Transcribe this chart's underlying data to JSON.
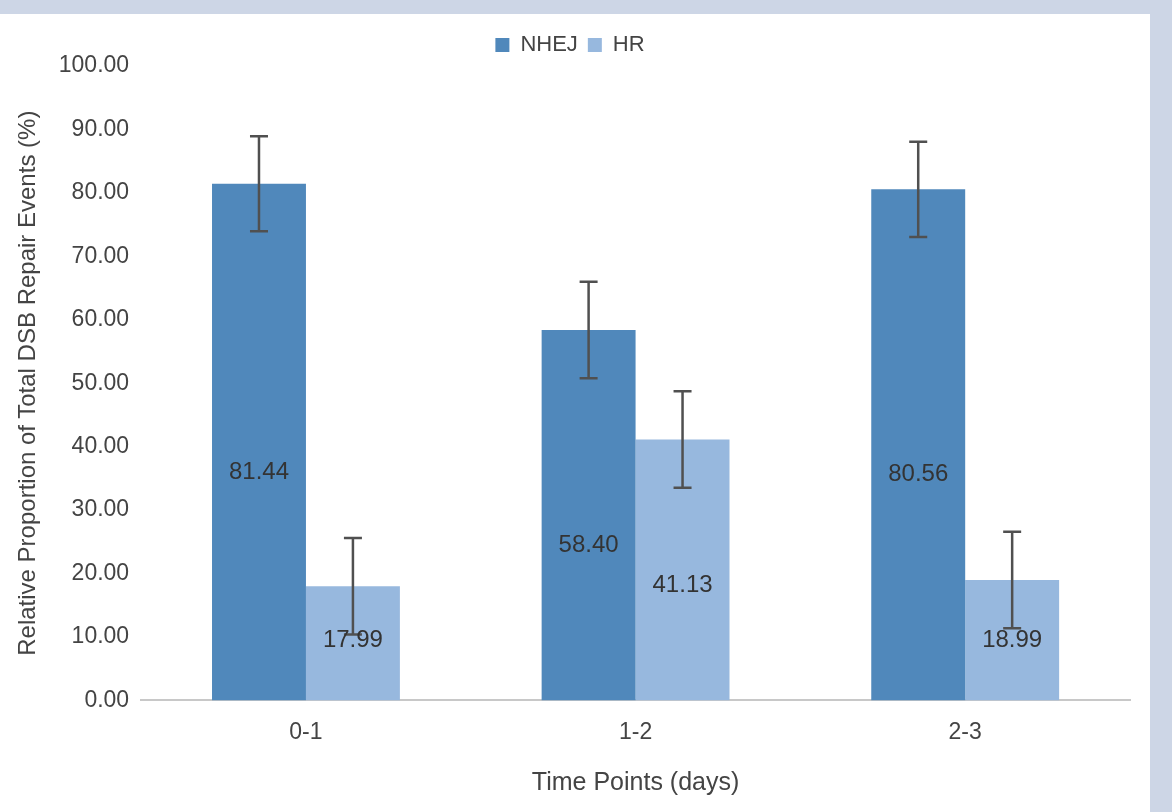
{
  "chart_data": {
    "type": "bar",
    "xlabel": "Time Points (days)",
    "ylabel": "Relative Proportion of Total DSB Repair Events (%)",
    "categories": [
      "0-1",
      "1-2",
      "2-3"
    ],
    "series": [
      {
        "name": "NHEJ",
        "color": "#5088bb",
        "values": [
          81.44,
          58.4,
          80.56
        ],
        "value_labels": [
          "81.44",
          "58.40",
          "80.56"
        ],
        "errors": [
          7.5,
          7.6,
          7.5
        ]
      },
      {
        "name": "HR",
        "color": "#97b8de",
        "values": [
          17.99,
          41.13,
          18.99
        ],
        "value_labels": [
          "17.99",
          "41.13",
          "18.99"
        ],
        "errors": [
          7.6,
          7.6,
          7.6
        ]
      }
    ],
    "ylim": [
      0,
      100
    ],
    "yticks": [
      {
        "value": 0,
        "label": "0.00"
      },
      {
        "value": 10,
        "label": "10.00"
      },
      {
        "value": 20,
        "label": "20.00"
      },
      {
        "value": 30,
        "label": "30.00"
      },
      {
        "value": 40,
        "label": "40.00"
      },
      {
        "value": 50,
        "label": "50.00"
      },
      {
        "value": 60,
        "label": "60.00"
      },
      {
        "value": 70,
        "label": "70.00"
      },
      {
        "value": 80,
        "label": "80.00"
      },
      {
        "value": 90,
        "label": "90.00"
      },
      {
        "value": 100,
        "label": "100.00"
      }
    ],
    "legend": "top",
    "grid": false
  }
}
